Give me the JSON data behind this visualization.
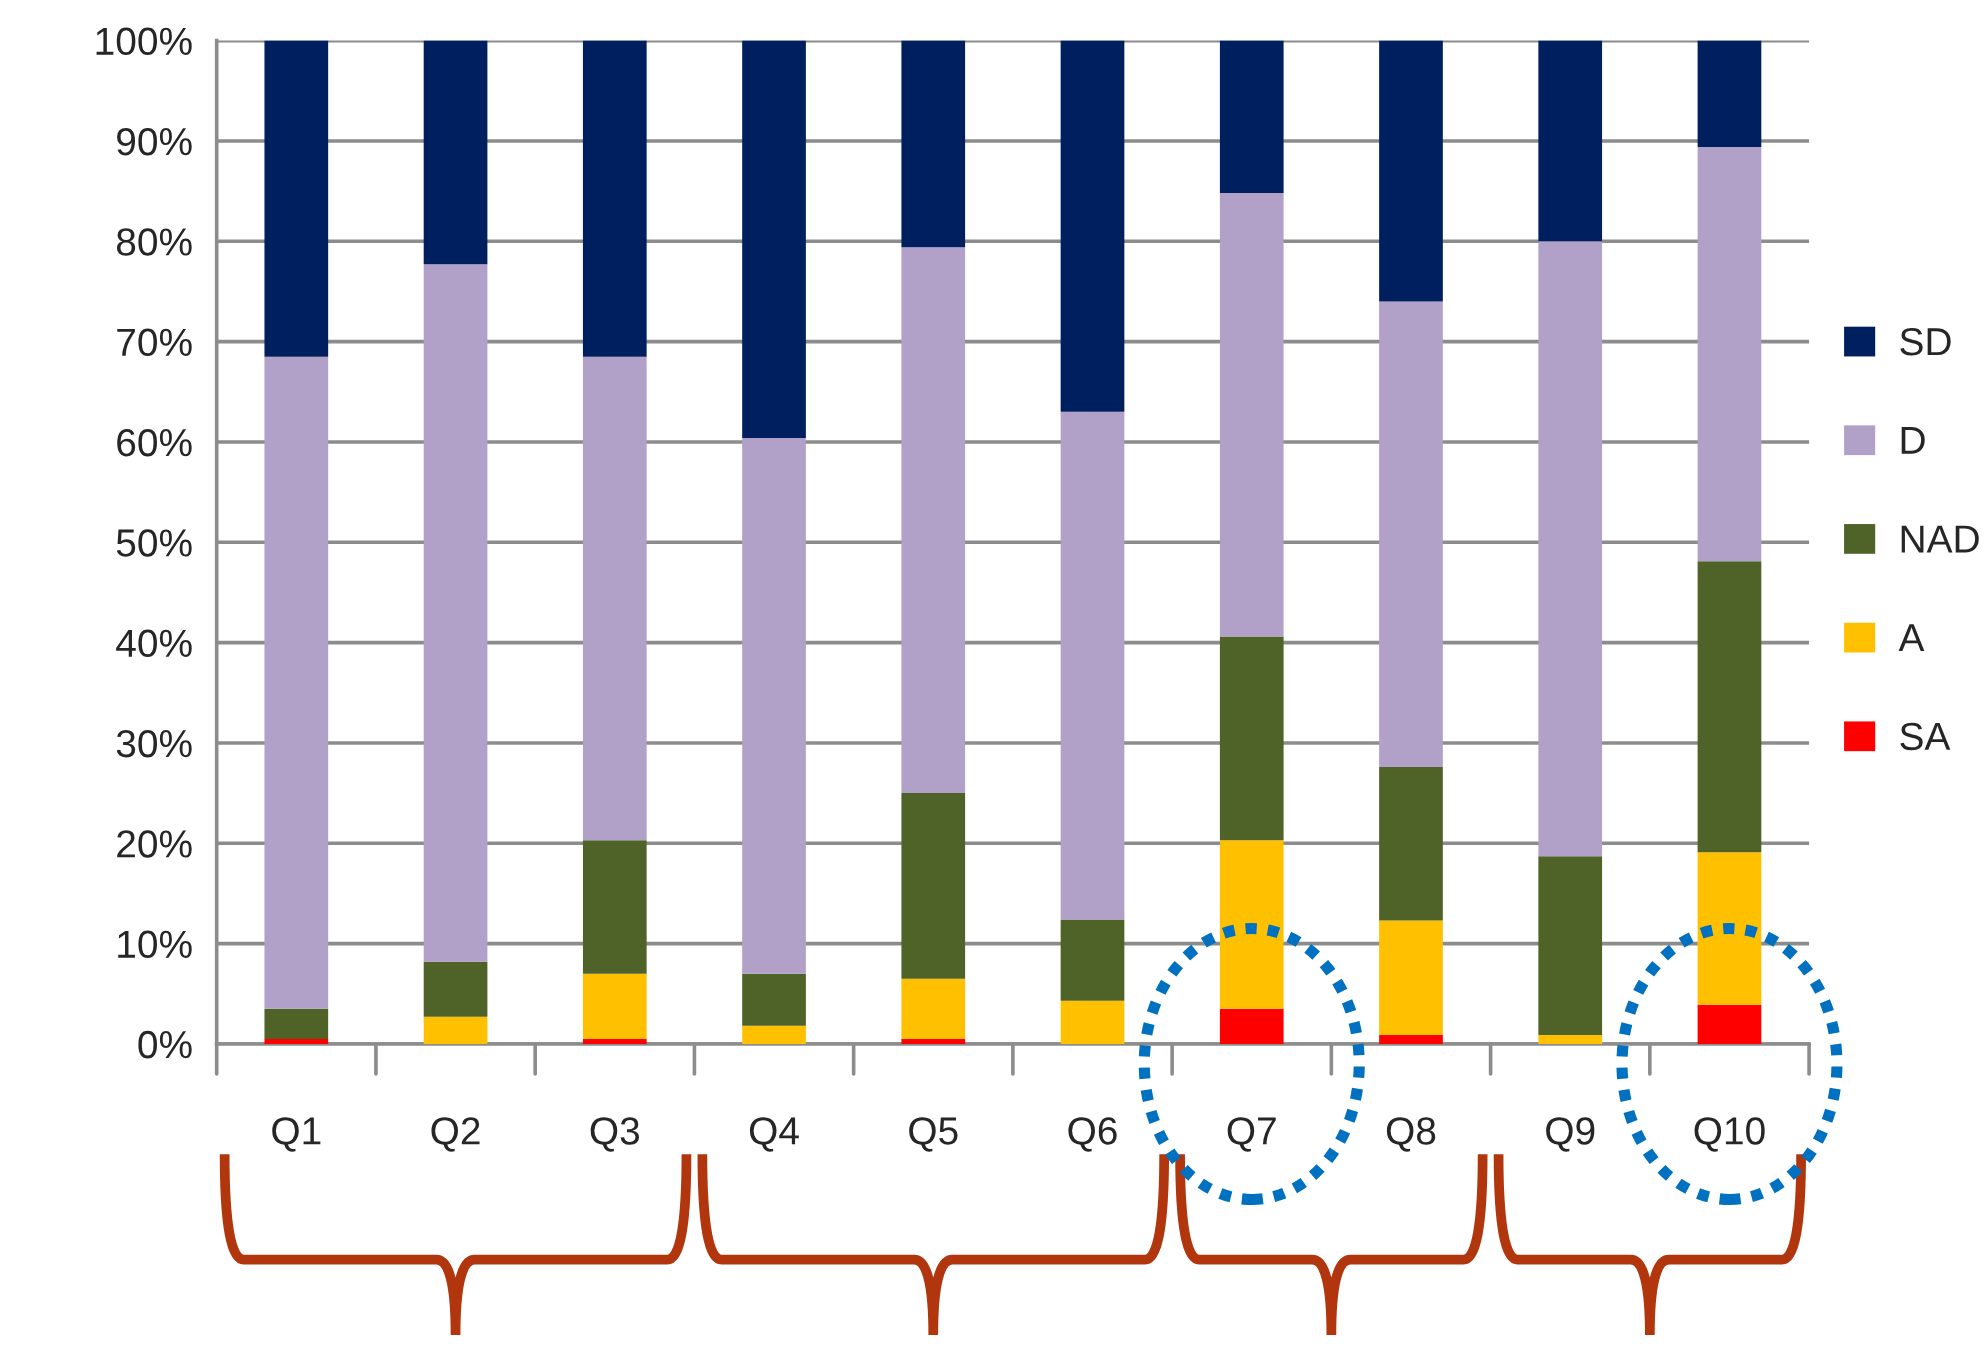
{
  "chart_data": {
    "type": "bar",
    "stacked": true,
    "categories": [
      "Q1",
      "Q2",
      "Q3",
      "Q4",
      "Q5",
      "Q6",
      "Q7",
      "Q8",
      "Q9",
      "Q10"
    ],
    "series": [
      {
        "name": "SA",
        "color": "#ff0000",
        "values": [
          0.5,
          0,
          0.5,
          0,
          0.5,
          0,
          3.5,
          0.9,
          0,
          3.9
        ]
      },
      {
        "name": "A",
        "color": "#ffc000",
        "values": [
          0,
          2.7,
          6.5,
          1.8,
          6,
          4.3,
          16.8,
          11.4,
          0.9,
          15.2
        ]
      },
      {
        "name": "NAD",
        "color": "#4f6228",
        "values": [
          3,
          5.5,
          13.3,
          5.2,
          18.5,
          8.1,
          20.3,
          15.3,
          17.8,
          29
        ]
      },
      {
        "name": "D",
        "color": "#b1a0c7",
        "values": [
          65,
          69.5,
          48.2,
          53.4,
          54.4,
          50.6,
          44.2,
          46.4,
          61.3,
          41.3
        ]
      },
      {
        "name": "SD",
        "color": "#001f5f",
        "values": [
          31.5,
          22.3,
          31.5,
          39.6,
          20.6,
          37,
          15.2,
          26,
          20,
          10.6
        ]
      }
    ],
    "ylim": [
      0,
      100
    ],
    "yticks": [
      {
        "value": 0,
        "label": "0%"
      },
      {
        "value": 10,
        "label": "10%"
      },
      {
        "value": 20,
        "label": "20%"
      },
      {
        "value": 30,
        "label": "30%"
      },
      {
        "value": 40,
        "label": "40%"
      },
      {
        "value": 50,
        "label": "50%"
      },
      {
        "value": 60,
        "label": "60%"
      },
      {
        "value": 70,
        "label": "70%"
      },
      {
        "value": 80,
        "label": "80%"
      },
      {
        "value": 90,
        "label": "90%"
      },
      {
        "value": 100,
        "label": "100%"
      }
    ],
    "grid": "y",
    "legend": "right"
  }
}
